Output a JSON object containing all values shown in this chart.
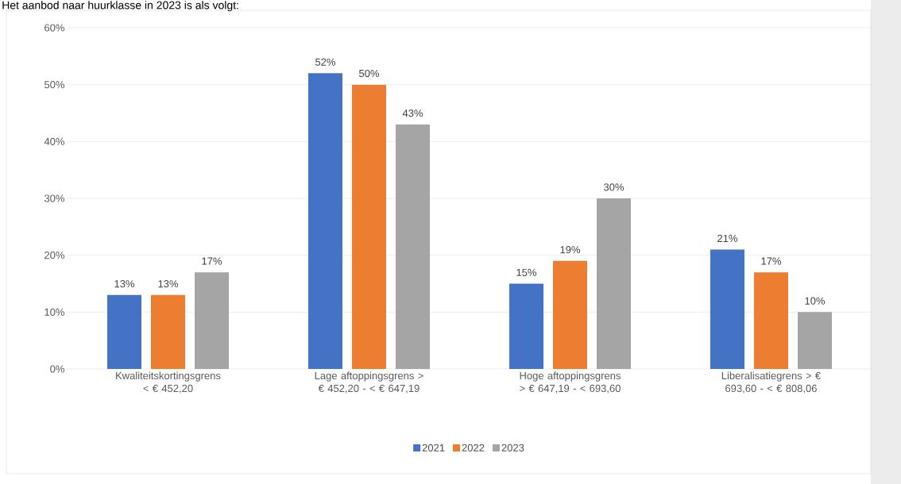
{
  "chart_data": {
    "type": "bar",
    "title": "Het aanbod naar huurklasse in 2023 is als volgt:",
    "categories": [
      "Kwaliteitskortingsgrens < € 452,20",
      "Lage aftoppingsgrens > € 452,20 - < € 647,19",
      "Hoge aftoppingsgrens > € 647,19 - < 693,60",
      "Liberalisatiegrens > € 693,60 - < € 808,06"
    ],
    "series": [
      {
        "name": "2021",
        "color": "#4472c4",
        "values": [
          13,
          52,
          15,
          21
        ],
        "value_labels": [
          "13%",
          "52%",
          "15%",
          "21%"
        ]
      },
      {
        "name": "2022",
        "color": "#ed7d31",
        "values": [
          13,
          50,
          19,
          17
        ],
        "value_labels": [
          "13%",
          "50%",
          "19%",
          "17%"
        ]
      },
      {
        "name": "2023",
        "color": "#a5a5a5",
        "values": [
          17,
          43,
          30,
          10
        ],
        "value_labels": [
          "17%",
          "43%",
          "30%",
          "10%"
        ]
      }
    ],
    "ylim": [
      0,
      60
    ],
    "yticks": [
      {
        "value": 0,
        "label": "0%"
      },
      {
        "value": 10,
        "label": "10%"
      },
      {
        "value": 20,
        "label": "20%"
      },
      {
        "value": 30,
        "label": "30%"
      },
      {
        "value": 40,
        "label": "40%"
      },
      {
        "value": 50,
        "label": "50%"
      },
      {
        "value": 60,
        "label": "60%"
      }
    ],
    "grid": "y",
    "legend": "bottom"
  }
}
